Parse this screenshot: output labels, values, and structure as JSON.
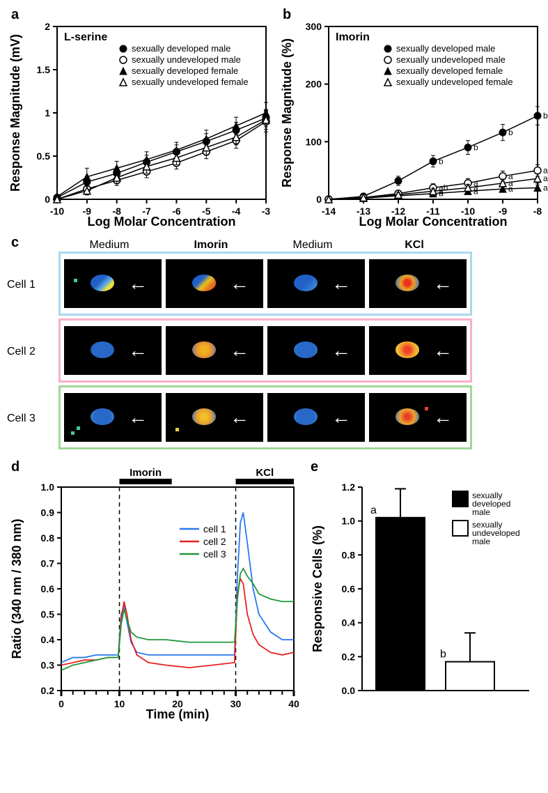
{
  "panel_a": {
    "label": "a",
    "title": "L-serine",
    "xlabel": "Log Molar Concentration",
    "ylabel": "Response Magnitude (mV)",
    "xlim": [
      -10,
      -3
    ],
    "ylim": [
      0,
      2.0
    ],
    "xticks": [
      -10,
      -9,
      -8,
      -7,
      -6,
      -5,
      -4,
      -3
    ],
    "yticks": [
      0,
      0.5,
      1.0,
      1.5,
      2.0
    ],
    "legend": [
      {
        "label": "sexually developed male",
        "marker": "filled-circle"
      },
      {
        "label": "sexually undeveloped male",
        "marker": "open-circle"
      },
      {
        "label": "sexually developed female",
        "marker": "filled-triangle"
      },
      {
        "label": "sexually undeveloped female",
        "marker": "open-triangle"
      }
    ],
    "series": {
      "dev_male": {
        "x": [
          -10,
          -9,
          -8,
          -7,
          -6,
          -5,
          -4,
          -3
        ],
        "y": [
          0.02,
          0.2,
          0.3,
          0.43,
          0.55,
          0.67,
          0.8,
          0.94
        ],
        "err": [
          0.02,
          0.06,
          0.07,
          0.08,
          0.08,
          0.09,
          0.09,
          0.1
        ],
        "marker": "filled-circle"
      },
      "undev_male": {
        "x": [
          -10,
          -9,
          -8,
          -7,
          -6,
          -5,
          -4,
          -3
        ],
        "y": [
          0.0,
          0.12,
          0.22,
          0.32,
          0.42,
          0.55,
          0.68,
          0.9
        ],
        "err": [
          0.02,
          0.05,
          0.06,
          0.07,
          0.07,
          0.08,
          0.09,
          0.12
        ],
        "marker": "open-circle"
      },
      "dev_female": {
        "x": [
          -10,
          -9,
          -8,
          -7,
          -6,
          -5,
          -4,
          -3
        ],
        "y": [
          0.03,
          0.26,
          0.36,
          0.46,
          0.57,
          0.7,
          0.85,
          1.0
        ],
        "err": [
          0.02,
          0.1,
          0.08,
          0.09,
          0.09,
          0.1,
          0.1,
          0.12
        ],
        "marker": "filled-triangle"
      },
      "undev_female": {
        "x": [
          -10,
          -9,
          -8,
          -7,
          -6,
          -5,
          -4,
          -3
        ],
        "y": [
          0.0,
          0.1,
          0.25,
          0.38,
          0.48,
          0.6,
          0.72,
          0.92
        ],
        "err": [
          0.02,
          0.05,
          0.07,
          0.08,
          0.08,
          0.09,
          0.09,
          0.11
        ],
        "marker": "open-triangle"
      }
    },
    "line_color": "#000000",
    "line_width": 1.5,
    "marker_size": 5
  },
  "panel_b": {
    "label": "b",
    "title": "Imorin",
    "xlabel": "Log Molar Concentration",
    "ylabel": "Response Magnitude (%)",
    "xlim": [
      -14,
      -8
    ],
    "ylim": [
      0,
      300
    ],
    "xticks": [
      -14,
      -13,
      -12,
      -11,
      -10,
      -9,
      -8
    ],
    "yticks": [
      0,
      100,
      200,
      300
    ],
    "legend": [
      {
        "label": "sexually developed male",
        "marker": "filled-circle"
      },
      {
        "label": "sexually undeveloped male",
        "marker": "open-circle"
      },
      {
        "label": "sexually developed female",
        "marker": "filled-triangle"
      },
      {
        "label": "sexually undeveloped female",
        "marker": "open-triangle"
      }
    ],
    "series": {
      "dev_male": {
        "x": [
          -14,
          -13,
          -12,
          -11,
          -10,
          -9,
          -8
        ],
        "y": [
          0,
          5,
          32,
          66,
          90,
          116,
          145
        ],
        "err": [
          0,
          3,
          8,
          10,
          12,
          14,
          16
        ],
        "marker": "filled-circle",
        "ann": [
          "",
          "",
          "",
          "b",
          "b",
          "b",
          "b"
        ]
      },
      "undev_male": {
        "x": [
          -14,
          -13,
          -12,
          -11,
          -10,
          -9,
          -8
        ],
        "y": [
          0,
          3,
          10,
          20,
          28,
          40,
          50
        ],
        "err": [
          0,
          3,
          5,
          7,
          8,
          9,
          10
        ],
        "marker": "open-circle",
        "ann": [
          "",
          "",
          "",
          "ab",
          "a",
          "a",
          "a"
        ]
      },
      "dev_female": {
        "x": [
          -14,
          -13,
          -12,
          -11,
          -10,
          -9,
          -8
        ],
        "y": [
          0,
          2,
          6,
          10,
          14,
          18,
          20
        ],
        "err": [
          0,
          2,
          3,
          4,
          4,
          5,
          5
        ],
        "marker": "filled-triangle",
        "ann": [
          "",
          "",
          "",
          "a",
          "a",
          "a",
          "a"
        ]
      },
      "undev_female": {
        "x": [
          -14,
          -13,
          -12,
          -11,
          -10,
          -9,
          -8
        ],
        "y": [
          0,
          3,
          8,
          14,
          20,
          28,
          36
        ],
        "err": [
          0,
          2,
          4,
          5,
          6,
          7,
          8
        ],
        "marker": "open-triangle",
        "ann": [
          "",
          "",
          "",
          "a",
          "a",
          "a",
          "a"
        ]
      }
    },
    "line_color": "#000000",
    "line_width": 1.5,
    "marker_size": 5
  },
  "panel_c": {
    "label": "c",
    "col_headers": [
      "Medium",
      "Imorin",
      "Medium",
      "KCl"
    ],
    "col_bold": [
      false,
      true,
      false,
      true
    ],
    "rows": [
      {
        "label": "Cell 1",
        "border_color": "#a8d8f0",
        "cells": [
          {
            "blob": "linear-gradient(135deg,#2060c8 40%, #58a8e8 60%, #e8e040 75%)",
            "spots": [
              {
                "x": 14,
                "y": 28,
                "c": "#40c8a0"
              }
            ]
          },
          {
            "blob": "linear-gradient(135deg,#2060c8 35%, #e8c020 55%, #e87020 75%)",
            "spots": []
          },
          {
            "blob": "linear-gradient(135deg,#2060c8 50%, #3880d0 80%)",
            "spots": []
          },
          {
            "blob": "radial-gradient(circle,#e83020 20%, #f0a020 45%, #3070c0 90%)",
            "spots": []
          }
        ]
      },
      {
        "label": "Cell 2",
        "border_color": "#f8b0c8",
        "cells": [
          {
            "blob": "radial-gradient(circle,#2868c8 60%, #2060b8 90%)",
            "spots": []
          },
          {
            "blob": "radial-gradient(circle,#f0b020 25%, #e89030 55%, #3878c8 90%)",
            "spots": []
          },
          {
            "blob": "radial-gradient(circle,#2868c8 60%, #3880d0 90%)",
            "spots": []
          },
          {
            "blob": "radial-gradient(circle,#f04028 20%, #f0a830 55%, #e8d040 85%)",
            "spots": []
          }
        ]
      },
      {
        "label": "Cell 3",
        "border_color": "#a0d898",
        "cells": [
          {
            "blob": "radial-gradient(circle,#2868c8 50%, #3880d0 85%)",
            "spots": [
              {
                "x": 10,
                "y": 55,
                "c": "#40c8a0"
              },
              {
                "x": 18,
                "y": 48,
                "c": "#40c8a0"
              }
            ]
          },
          {
            "blob": "radial-gradient(circle,#f0c028 20%, #e8a030 50%, #3878c8 90%)",
            "spots": [
              {
                "x": 14,
                "y": 50,
                "c": "#e8d040"
              }
            ]
          },
          {
            "blob": "radial-gradient(circle,#2868c8 55%, #3880d0 88%)",
            "spots": []
          },
          {
            "blob": "radial-gradient(circle,#e84028 18%, #f0a028 50%, #3878c8 92%)",
            "spots": [
              {
                "x": 80,
                "y": 20,
                "c": "#e84028"
              }
            ]
          }
        ]
      }
    ],
    "arrow_glyph": "←"
  },
  "panel_d": {
    "label": "d",
    "xlabel": "Time (min)",
    "ylabel": "Ratio (340 nm / 380 nm)",
    "xlim": [
      0,
      40
    ],
    "ylim": [
      0.2,
      1.0
    ],
    "xticks": [
      0,
      10,
      20,
      30,
      40
    ],
    "yticks": [
      0.2,
      0.3,
      0.4,
      0.5,
      0.6,
      0.7,
      0.8,
      0.9,
      1.0
    ],
    "stim_bars": [
      {
        "label": "Imorin",
        "start": 10,
        "end": 19
      },
      {
        "label": "KCl",
        "start": 30,
        "end": 40
      }
    ],
    "dashed_lines_x": [
      10,
      30
    ],
    "legend": [
      {
        "label": "cell 1",
        "color": "#2878f0"
      },
      {
        "label": "cell 2",
        "color": "#e82020"
      },
      {
        "label": "cell 3",
        "color": "#209838"
      }
    ],
    "series": {
      "cell1": {
        "color": "#2878f0",
        "x": [
          0,
          2,
          4,
          6,
          8,
          9.8,
          10.3,
          10.8,
          11.3,
          12,
          13,
          15,
          18,
          22,
          26,
          29.8,
          30.3,
          30.8,
          31.3,
          32,
          33,
          34,
          36,
          38,
          40
        ],
        "y": [
          0.31,
          0.33,
          0.33,
          0.34,
          0.34,
          0.34,
          0.5,
          0.53,
          0.47,
          0.39,
          0.35,
          0.34,
          0.34,
          0.34,
          0.34,
          0.34,
          0.65,
          0.86,
          0.9,
          0.78,
          0.6,
          0.5,
          0.43,
          0.4,
          0.4
        ]
      },
      "cell2": {
        "color": "#e82020",
        "x": [
          0,
          2,
          4,
          6,
          8,
          9.8,
          10.3,
          10.8,
          11.3,
          12,
          13,
          15,
          18,
          22,
          26,
          29.8,
          30.3,
          30.8,
          31.3,
          32,
          33,
          34,
          36,
          38,
          40
        ],
        "y": [
          0.3,
          0.31,
          0.32,
          0.32,
          0.33,
          0.33,
          0.48,
          0.55,
          0.5,
          0.4,
          0.34,
          0.31,
          0.3,
          0.29,
          0.3,
          0.31,
          0.58,
          0.64,
          0.62,
          0.5,
          0.42,
          0.38,
          0.35,
          0.34,
          0.35
        ]
      },
      "cell3": {
        "color": "#209838",
        "x": [
          0,
          2,
          4,
          6,
          8,
          9.8,
          10.3,
          10.8,
          11.3,
          12,
          13,
          15,
          18,
          22,
          26,
          29.8,
          30.3,
          30.8,
          31.3,
          32,
          33,
          34,
          36,
          38,
          40
        ],
        "y": [
          0.28,
          0.3,
          0.31,
          0.32,
          0.33,
          0.33,
          0.46,
          0.52,
          0.48,
          0.43,
          0.41,
          0.4,
          0.4,
          0.39,
          0.39,
          0.39,
          0.56,
          0.66,
          0.68,
          0.65,
          0.62,
          0.58,
          0.56,
          0.55,
          0.55
        ]
      }
    },
    "line_width": 1.8
  },
  "panel_e": {
    "label": "e",
    "ylabel": "Responsive Cells (%)",
    "ylim": [
      0,
      1.2
    ],
    "yticks": [
      0,
      0.2,
      0.4,
      0.6,
      0.8,
      1.0,
      1.2
    ],
    "bars": [
      {
        "label": "sexually developed male",
        "value": 1.02,
        "err": 0.17,
        "color": "#000000",
        "ann": "a"
      },
      {
        "label": "sexually undeveloped male",
        "value": 0.17,
        "err": 0.17,
        "color": "#ffffff",
        "ann": "b"
      }
    ],
    "bar_border": "#000000",
    "bar_border_width": 2
  }
}
